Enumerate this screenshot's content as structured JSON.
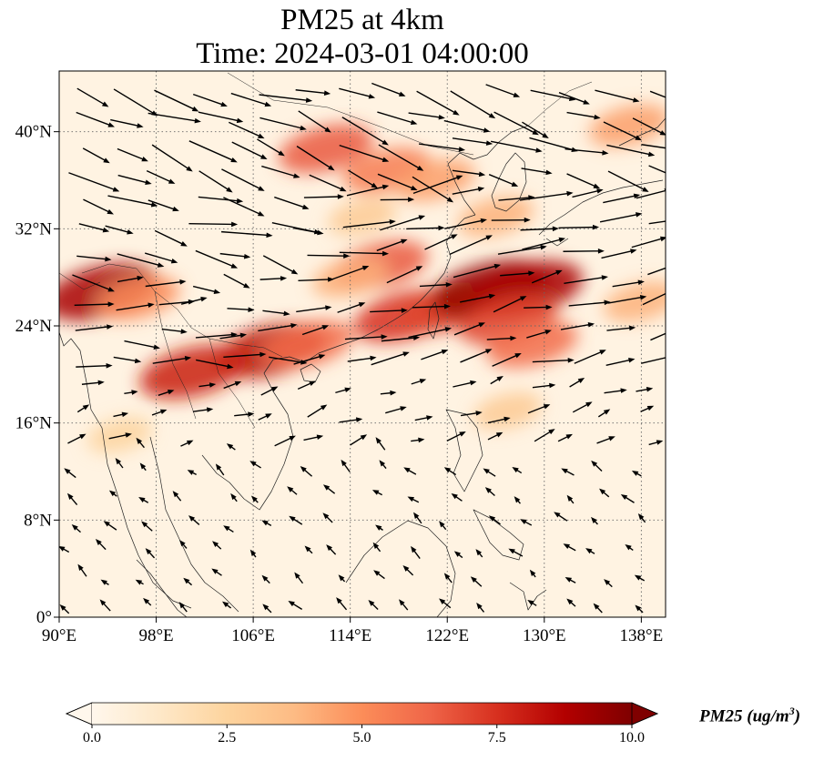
{
  "title": {
    "line1": "PM25 at 4km",
    "line2": "Time: 2024-03-01 04:00:00"
  },
  "map": {
    "extent": {
      "lon_min": 90,
      "lon_max": 140,
      "lat_min": 0,
      "lat_max": 45
    },
    "gridlines": true,
    "lon_ticks": [
      {
        "value": 90,
        "label": "90°E"
      },
      {
        "value": 98,
        "label": "98°E"
      },
      {
        "value": 106,
        "label": "106°E"
      },
      {
        "value": 114,
        "label": "114°E"
      },
      {
        "value": 122,
        "label": "122°E"
      },
      {
        "value": 130,
        "label": "130°E"
      },
      {
        "value": 138,
        "label": "138°E"
      }
    ],
    "lat_ticks": [
      {
        "value": 0,
        "label": "0°"
      },
      {
        "value": 8,
        "label": "8°N"
      },
      {
        "value": 16,
        "label": "16°N"
      },
      {
        "value": 24,
        "label": "24°N"
      },
      {
        "value": 32,
        "label": "32°N"
      },
      {
        "value": 40,
        "label": "40°N"
      }
    ],
    "pm25_hotspots": [
      {
        "lon": 93.5,
        "lat": 26.8,
        "value": 9.0
      },
      {
        "lon": 96.5,
        "lat": 26.3,
        "value": 5.0
      },
      {
        "lon": 112,
        "lat": 38.6,
        "value": 6.5
      },
      {
        "lon": 117,
        "lat": 36.8,
        "value": 5.5
      },
      {
        "lon": 121,
        "lat": 36.0,
        "value": 4.5
      },
      {
        "lon": 137,
        "lat": 40.5,
        "value": 4.5
      },
      {
        "lon": 116.5,
        "lat": 29.0,
        "value": 6.5
      },
      {
        "lon": 114,
        "lat": 28.0,
        "value": 4.0
      },
      {
        "lon": 118.5,
        "lat": 24.8,
        "value": 7.5
      },
      {
        "lon": 122,
        "lat": 25.5,
        "value": 7.0
      },
      {
        "lon": 125.5,
        "lat": 27.0,
        "value": 9.5
      },
      {
        "lon": 128.5,
        "lat": 27.0,
        "value": 9.0
      },
      {
        "lon": 127,
        "lat": 24.5,
        "value": 7.0
      },
      {
        "lon": 129,
        "lat": 22.5,
        "value": 6.0
      },
      {
        "lon": 107.5,
        "lat": 22.0,
        "value": 8.5
      },
      {
        "lon": 110.5,
        "lat": 22.5,
        "value": 6.0
      },
      {
        "lon": 101,
        "lat": 20.2,
        "value": 8.0
      },
      {
        "lon": 126,
        "lat": 33.0,
        "value": 4.0
      },
      {
        "lon": 138,
        "lat": 26.0,
        "value": 4.0
      },
      {
        "lon": 115,
        "lat": 33.0,
        "value": 3.0
      },
      {
        "lon": 95,
        "lat": 15.0,
        "value": 2.5
      },
      {
        "lon": 127,
        "lat": 17.0,
        "value": 3.0
      }
    ],
    "wind_regions": [
      {
        "lon_min": 90,
        "lon_max": 140,
        "lat_min": 35,
        "lat_max": 45,
        "u": 1.0,
        "v": -0.35,
        "speed": 1.0
      },
      {
        "lon_min": 90,
        "lon_max": 110,
        "lat_min": 28,
        "lat_max": 35,
        "u": 1.0,
        "v": -0.25,
        "speed": 0.95
      },
      {
        "lon_min": 110,
        "lon_max": 140,
        "lat_min": 28,
        "lat_max": 35,
        "u": 1.0,
        "v": 0.22,
        "speed": 1.0
      },
      {
        "lon_min": 90,
        "lon_max": 108,
        "lat_min": 20,
        "lat_max": 28,
        "u": 1.0,
        "v": 0.0,
        "speed": 0.8
      },
      {
        "lon_min": 108,
        "lon_max": 140,
        "lat_min": 20,
        "lat_max": 28,
        "u": 1.0,
        "v": 0.25,
        "speed": 0.85
      },
      {
        "lon_min": 90,
        "lon_max": 140,
        "lat_min": 14,
        "lat_max": 20,
        "u": 1.0,
        "v": 0.35,
        "speed": 0.45
      },
      {
        "lon_min": 90,
        "lon_max": 140,
        "lat_min": 0,
        "lat_max": 14,
        "u": -0.7,
        "v": 0.6,
        "speed": 0.3
      }
    ]
  },
  "colorbar": {
    "min": 0.0,
    "max": 10.0,
    "extend": "both",
    "cmap": "OrRd",
    "colors": [
      "#fff7ec",
      "#fee8c8",
      "#fdd49e",
      "#fdbb84",
      "#fc8d59",
      "#ef6548",
      "#d7301f",
      "#b30000",
      "#7f0000"
    ],
    "ticks": [
      {
        "value": 0.0,
        "label": "0.0"
      },
      {
        "value": 2.5,
        "label": "2.5"
      },
      {
        "value": 5.0,
        "label": "5.0"
      },
      {
        "value": 7.5,
        "label": "7.5"
      },
      {
        "value": 10.0,
        "label": "10.0"
      }
    ],
    "label_text": "PM25 (ug/m",
    "label_sup": "3",
    "label_close": ")"
  }
}
